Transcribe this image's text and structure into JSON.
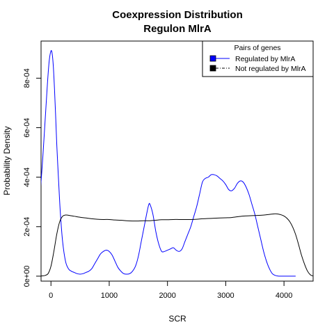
{
  "chart_data": {
    "type": "line",
    "title": "Coexpression Distribution",
    "subtitle": "Regulon MlrA",
    "xlabel": "SCR",
    "ylabel": "Probability Density",
    "xlim": [
      -170,
      4500
    ],
    "ylim": [
      -2e-05,
      0.00095
    ],
    "x_ticks": [
      0,
      1000,
      2000,
      3000,
      4000
    ],
    "x_tick_labels": [
      "0",
      "1000",
      "2000",
      "3000",
      "4000"
    ],
    "y_ticks": [
      0,
      0.0002,
      0.0004,
      0.0006,
      0.0008
    ],
    "y_tick_labels": [
      "0e+00",
      "2e-04",
      "4e-04",
      "6e-04",
      "8e-04"
    ],
    "grid": false,
    "legend": {
      "title": "Pairs of genes",
      "position": "top-right",
      "entries": [
        "Regulated by  MlrA",
        "Not regulated by  MlrA"
      ]
    },
    "series": [
      {
        "name": "Regulated by  MlrA",
        "color": "#0000ff",
        "x": [
          -180,
          -140,
          -100,
          -60,
          -30,
          0,
          20,
          40,
          60,
          80,
          100,
          130,
          160,
          200,
          250,
          300,
          350,
          400,
          450,
          500,
          550,
          600,
          650,
          700,
          750,
          800,
          850,
          900,
          950,
          1000,
          1050,
          1100,
          1150,
          1200,
          1250,
          1300,
          1350,
          1400,
          1450,
          1500,
          1550,
          1600,
          1650,
          1680,
          1700,
          1750,
          1800,
          1850,
          1900,
          1950,
          2000,
          2050,
          2100,
          2150,
          2200,
          2250,
          2300,
          2350,
          2400,
          2450,
          2500,
          2550,
          2600,
          2650,
          2700,
          2750,
          2800,
          2850,
          2900,
          2950,
          3000,
          3050,
          3100,
          3150,
          3200,
          3250,
          3300,
          3350,
          3400,
          3450,
          3500,
          3550,
          3600,
          3650,
          3700,
          3750,
          3800,
          3850,
          3900,
          3950,
          4000,
          4050,
          4100,
          4150,
          4200
        ],
        "y": [
          0.00035,
          0.00048,
          0.00063,
          0.00078,
          0.00087,
          0.00091,
          0.0009,
          0.00085,
          0.00076,
          0.00065,
          0.00053,
          0.00039,
          0.00026,
          0.00014,
          6e-05,
          3e-05,
          2e-05,
          1.5e-05,
          1e-05,
          8e-06,
          1e-05,
          1.5e-05,
          2e-05,
          3e-05,
          5e-05,
          7e-05,
          9e-05,
          0.0001,
          0.000105,
          0.0001,
          8.5e-05,
          6e-05,
          3.5e-05,
          2e-05,
          1e-05,
          8e-06,
          1e-05,
          2e-05,
          4e-05,
          8e-05,
          0.00014,
          0.0002,
          0.00026,
          0.00029,
          0.00029,
          0.00025,
          0.00018,
          0.00013,
          0.0001,
          0.0001,
          0.000105,
          0.00011,
          0.000115,
          0.000105,
          0.0001,
          0.00011,
          0.00014,
          0.00017,
          0.0002,
          0.00024,
          0.00028,
          0.00033,
          0.00038,
          0.000395,
          0.0004,
          0.00041,
          0.00041,
          0.000405,
          0.000395,
          0.000385,
          0.00037,
          0.00035,
          0.000345,
          0.000355,
          0.000375,
          0.000385,
          0.00038,
          0.00036,
          0.00033,
          0.00029,
          0.00025,
          0.0002,
          0.00015,
          0.0001,
          6e-05,
          3e-05,
          1e-05,
          3e-06,
          5e-07,
          2e-07,
          1e-07,
          0.0,
          0.0,
          0.0,
          0.0
        ]
      },
      {
        "name": "Not regulated by  MlrA",
        "color": "#000000",
        "x": [
          -180,
          -150,
          -100,
          -50,
          0,
          50,
          100,
          150,
          200,
          250,
          300,
          400,
          500,
          600,
          700,
          800,
          900,
          1000,
          1100,
          1200,
          1300,
          1400,
          1500,
          1600,
          1700,
          1800,
          1900,
          2000,
          2100,
          2200,
          2300,
          2400,
          2500,
          2600,
          2700,
          2800,
          2900,
          3000,
          3100,
          3200,
          3300,
          3400,
          3500,
          3600,
          3700,
          3800,
          3850,
          3900,
          3950,
          4000,
          4050,
          4100,
          4150,
          4200,
          4250,
          4300,
          4350,
          4400,
          4450,
          4500
        ],
        "y": [
          5e-07,
          1e-06,
          3e-06,
          1e-05,
          4e-05,
          0.0001,
          0.00017,
          0.00022,
          0.000242,
          0.000247,
          0.000246,
          0.000242,
          0.000238,
          0.000235,
          0.000232,
          0.00023,
          0.000229,
          0.000229,
          0.000227,
          0.000226,
          0.000224,
          0.000223,
          0.000223,
          0.000224,
          0.000224,
          0.000226,
          0.000228,
          0.000228,
          0.000229,
          0.000229,
          0.000229,
          0.000229,
          0.00023,
          0.000232,
          0.000233,
          0.000234,
          0.000235,
          0.000236,
          0.000237,
          0.00024,
          0.000243,
          0.000244,
          0.000245,
          0.000246,
          0.000248,
          0.000251,
          0.000252,
          0.000251,
          0.000248,
          0.000243,
          0.000234,
          0.00022,
          0.000198,
          0.000168,
          0.000128,
          8.5e-05,
          5e-05,
          2.2e-05,
          6e-06,
          5e-07
        ]
      }
    ]
  }
}
